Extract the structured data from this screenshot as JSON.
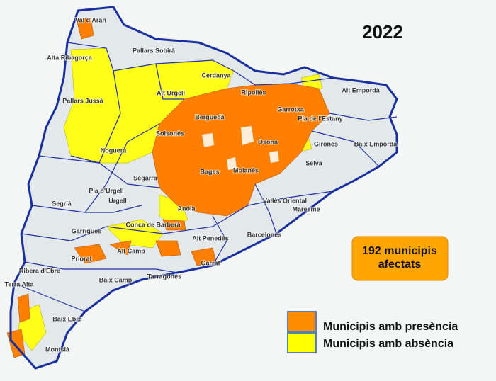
{
  "title": "2022",
  "callout": [
    "192 municipis",
    "afectats"
  ],
  "legend": [
    {
      "label": "Municipis amb presència",
      "color": "#ff8c00"
    },
    {
      "label": "Municipis amb absència",
      "color": "#ffff00"
    }
  ],
  "regions": [
    "Val d'Aran",
    "Alta Ribagorça",
    "Pallars Sobirà",
    "Pallars Jussà",
    "Alt Urgell",
    "Cerdanya",
    "Ripollès",
    "Alt Empordà",
    "Garrotxa",
    "Pla de l'Estany",
    "Berguedà",
    "Solsonès",
    "Noguera",
    "Osona",
    "Gironès",
    "Baix Empordà",
    "Selva",
    "Segarra",
    "Bages",
    "Moianès",
    "Pla d'Urgell",
    "Urgell",
    "Segrià",
    "Anoia",
    "Vallès Oriental",
    "Maresme",
    "Garrigues",
    "Conca de Barberà",
    "Alt Penedès",
    "Barcelonès",
    "Priorat",
    "Alt Camp",
    "Ribera d'Ebre",
    "Garraf",
    "Baix Camp",
    "Tarragonès",
    "Terra Alta",
    "Baix Ebre",
    "Montsià"
  ]
}
